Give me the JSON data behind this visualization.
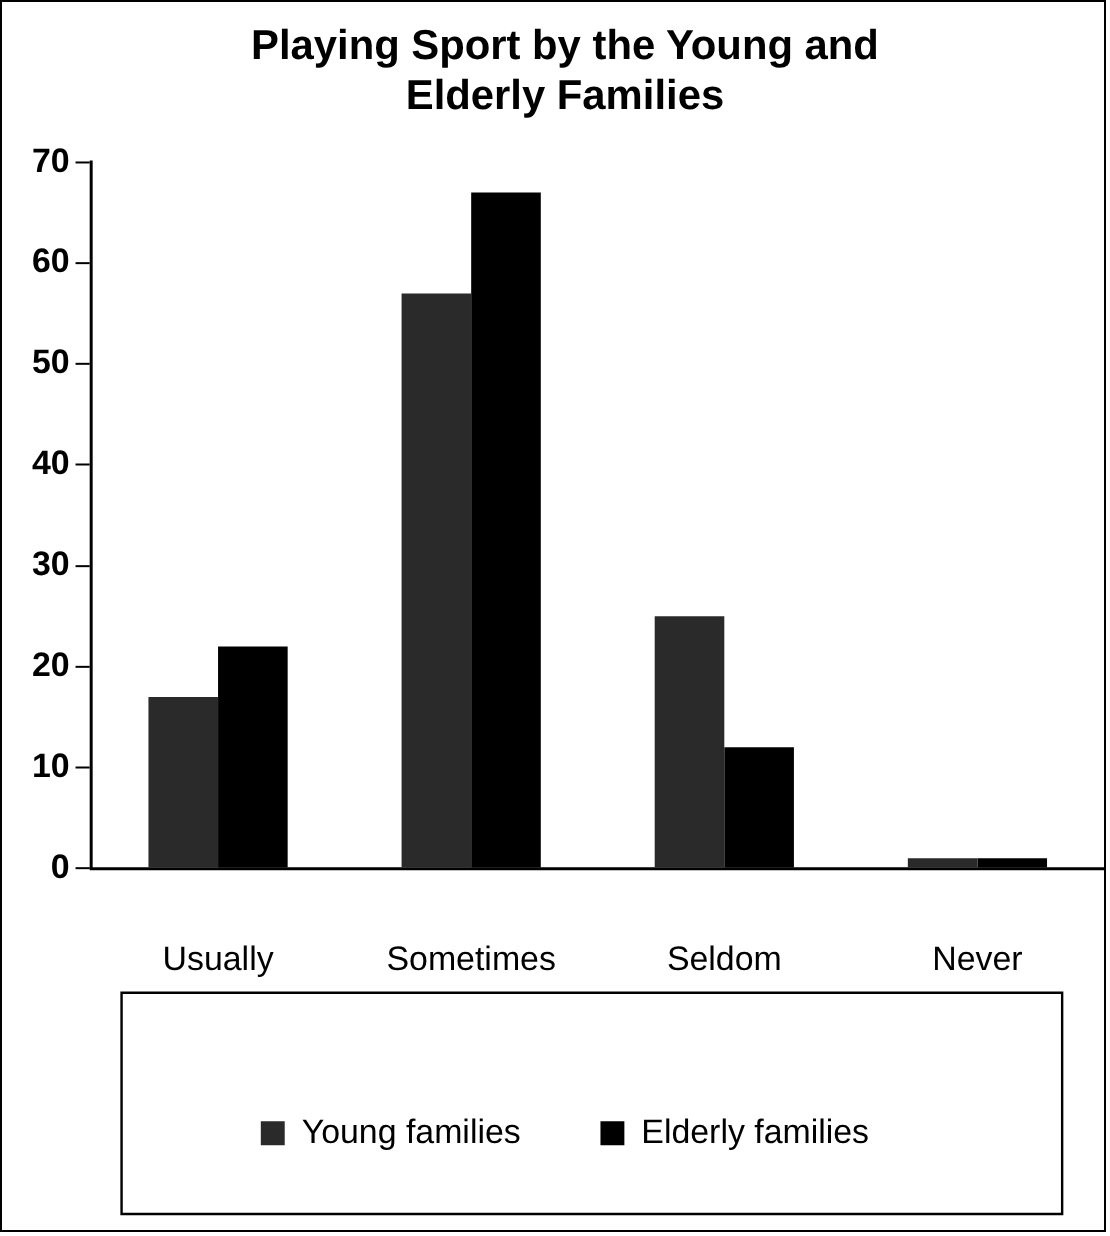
{
  "chart_data": {
    "type": "bar",
    "title": "Playing Sport by the Young and Elderly Families",
    "categories": [
      "Usually",
      "Sometimes",
      "Seldom",
      "Never"
    ],
    "series": [
      {
        "name": "Young families",
        "color": "#2a2a2a",
        "values": [
          17,
          57,
          25,
          1
        ]
      },
      {
        "name": "Elderly families",
        "color": "#000000",
        "values": [
          22,
          67,
          12,
          1
        ]
      }
    ],
    "ylim": [
      0,
      70
    ],
    "yticks": [
      0,
      10,
      20,
      30,
      40,
      50,
      60,
      70
    ],
    "grid": false,
    "legend": "bottom"
  }
}
